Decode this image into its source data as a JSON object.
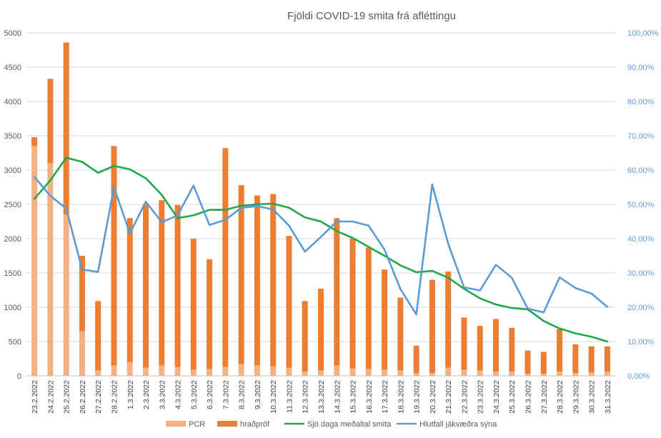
{
  "chart_data": {
    "type": "bar",
    "title": "Fjöldi COVID-19 smita frá afléttingu",
    "categories": [
      "23.2.2022",
      "24.2.2022",
      "25.2.2022",
      "26.2.2022",
      "27.2.2022",
      "28.2.2022",
      "1.3.2022",
      "2.3.2022",
      "3.3.2022",
      "4.3.2022",
      "5.3.2022",
      "6.3.2022",
      "7.3.2022",
      "8.3.2022",
      "9.3.2022",
      "10.3.2022",
      "11.3.2022",
      "12.3.2022",
      "13.3.2022",
      "14.3.2022",
      "15.3.2022",
      "16.3.2022",
      "17.3.2022",
      "18.3.2022",
      "19.3.2022",
      "20.3.2022",
      "21.3.2022",
      "22.3.2022",
      "23.3.2022",
      "24.3.2022",
      "25.3.2022",
      "26.3.2022",
      "27.3.2022",
      "28.3.2022",
      "29.3.2022",
      "30.3.2022",
      "31.3.2022"
    ],
    "stacked": true,
    "series": [
      {
        "name": "PCR",
        "type": "bar",
        "axis": "left",
        "color": "#F4B183",
        "values": [
          3350,
          3100,
          2350,
          650,
          80,
          150,
          200,
          120,
          150,
          130,
          90,
          100,
          130,
          170,
          150,
          140,
          120,
          60,
          80,
          150,
          110,
          100,
          90,
          80,
          40,
          40,
          120,
          90,
          80,
          60,
          60,
          30,
          30,
          60,
          40,
          50,
          60
        ]
      },
      {
        "name": "hraðpróf",
        "type": "bar",
        "axis": "left",
        "color": "#ED7D31",
        "values": [
          130,
          1230,
          2510,
          1100,
          1010,
          3200,
          2100,
          2380,
          2410,
          2360,
          1910,
          1600,
          3190,
          2610,
          2480,
          2510,
          1920,
          1030,
          1190,
          2150,
          1890,
          1770,
          1460,
          1060,
          400,
          1360,
          1400,
          760,
          650,
          770,
          640,
          340,
          320,
          620,
          420,
          380,
          370
        ]
      },
      {
        "name": "Sjö daga meðaltal smita",
        "type": "line",
        "axis": "left",
        "color": "#21A84A",
        "values": [
          2580,
          2850,
          3180,
          3120,
          2960,
          3060,
          3010,
          2880,
          2640,
          2300,
          2340,
          2420,
          2420,
          2480,
          2500,
          2510,
          2450,
          2310,
          2250,
          2110,
          2010,
          1880,
          1750,
          1610,
          1510,
          1530,
          1430,
          1270,
          1130,
          1040,
          990,
          970,
          800,
          690,
          620,
          570,
          500
        ]
      },
      {
        "name": "Hlutfall jákvæðra sýna",
        "type": "line",
        "axis": "right",
        "color": "#5B9BD5",
        "values": [
          58.0,
          52.5,
          48.8,
          31.0,
          30.3,
          55.0,
          41.5,
          50.8,
          44.8,
          46.8,
          55.5,
          44.0,
          45.5,
          49.0,
          49.5,
          48.5,
          43.8,
          36.2,
          40.5,
          45.0,
          45.0,
          43.8,
          36.8,
          25.3,
          17.9,
          55.8,
          38.5,
          25.8,
          24.9,
          32.4,
          28.6,
          19.6,
          18.5,
          28.7,
          25.6,
          24.0,
          20.1
        ]
      }
    ],
    "y_left": {
      "min": 0,
      "max": 5000,
      "step": 500
    },
    "y_right": {
      "min": 0,
      "max": 100,
      "step": 10
    },
    "right_tick_labels": [
      "0,00%",
      "10,00%",
      "20,00%",
      "30,00%",
      "40,00%",
      "50,00%",
      "60,00%",
      "70,00%",
      "80,00%",
      "90,00%",
      "100,00%"
    ],
    "grid": true,
    "legend_position": "bottom"
  }
}
